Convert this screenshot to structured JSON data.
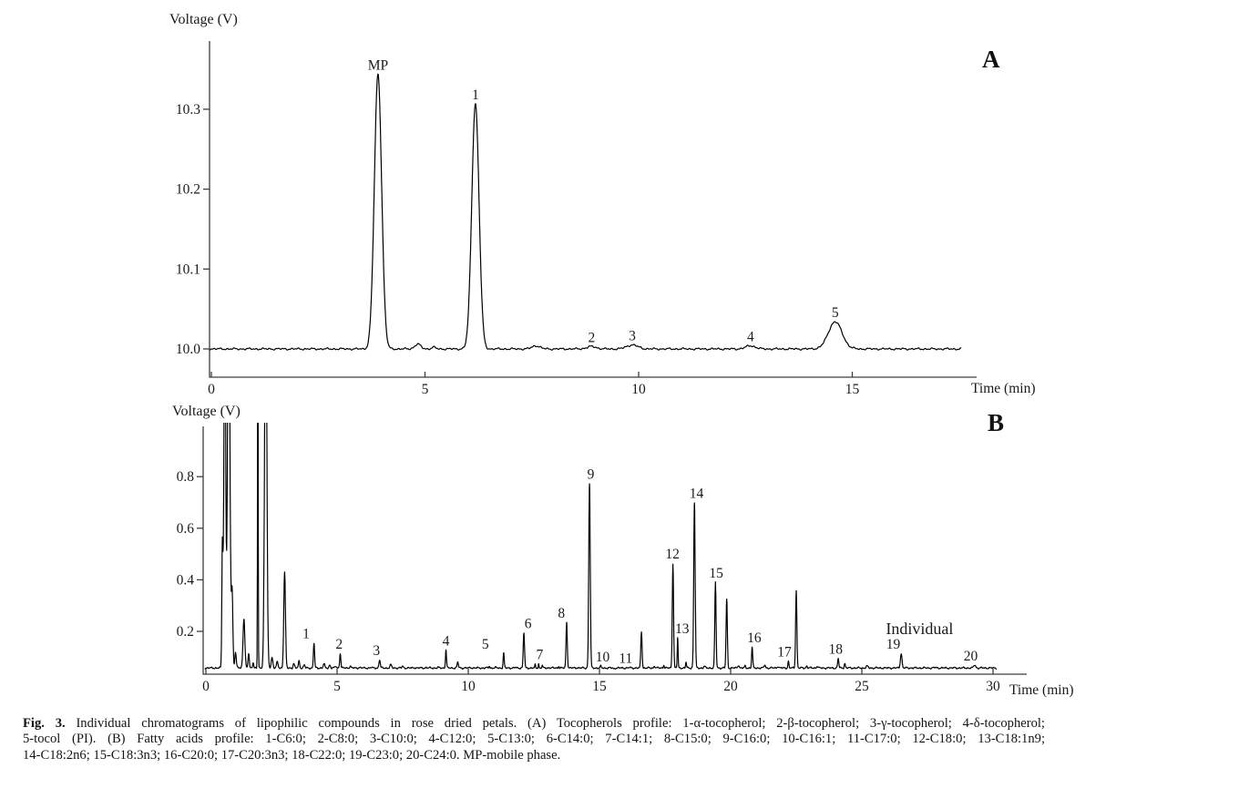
{
  "caption": {
    "fig_label": "Fig. 3.",
    "line1": " Individual chromatograms of lipophilic compounds in rose dried petals. (A) Tocopherols profile: 1-α-tocopherol; 2-β-tocopherol; 3-γ-tocopherol; 4-δ-tocopherol;",
    "line2": "5-tocol (PI). (B) Fatty acids profile: 1-C6:0; 2-C8:0; 3-C10:0; 4-C12:0; 5-C13:0; 6-C14:0; 7-C14:1; 8-C15:0; 9-C16:0; 10-C16:1; 11-C17:0; 12-C18:0; 13-C18:1n9;",
    "line3": "14-C18:2n6; 15-C18:3n3; 16-C20:0; 17-C20:3n3; 18-C22:0; 19-C23:0; 20-C24:0. MP-mobile phase."
  },
  "colors": {
    "trace": "#000000",
    "axis": "#3d3d3d",
    "text": "#1a1a1a"
  },
  "chart_data": [
    {
      "id": "A",
      "type": "line",
      "kind": "chromatogram",
      "panel_label": "A",
      "ylabel": "Voltage (V)",
      "xlabel": "Time (min)",
      "xlim": [
        0,
        17.9
      ],
      "ylim": [
        9.965,
        10.385
      ],
      "xticks": [
        "0",
        "5",
        "10",
        "15"
      ],
      "yticks": [
        "10.0",
        "10.1",
        "10.2",
        "10.3"
      ],
      "ytick_values": [
        10.0,
        10.1,
        10.2,
        10.3
      ],
      "xtick_values": [
        0,
        5,
        10,
        15
      ],
      "baseline": 10.0,
      "noise": 0.0012,
      "trace_end": 17.55,
      "peaks": [
        {
          "t": 3.9,
          "v": 10.344,
          "w": 0.085,
          "label": "MP"
        },
        {
          "t": 4.83,
          "v": 10.006,
          "w": 0.07
        },
        {
          "t": 5.2,
          "v": 10.002,
          "w": 0.05
        },
        {
          "t": 6.18,
          "v": 10.307,
          "w": 0.085,
          "label": "1"
        },
        {
          "t": 7.6,
          "v": 10.004,
          "w": 0.09
        },
        {
          "t": 8.9,
          "v": 10.003,
          "w": 0.11,
          "label": "2"
        },
        {
          "t": 9.85,
          "v": 10.005,
          "w": 0.13,
          "label": "3"
        },
        {
          "t": 12.62,
          "v": 10.004,
          "w": 0.11,
          "label": "4"
        },
        {
          "t": 14.6,
          "v": 10.034,
          "w": 0.16,
          "label": "5"
        }
      ],
      "annotations": []
    },
    {
      "id": "B",
      "type": "line",
      "kind": "chromatogram",
      "panel_label": "B",
      "ylabel": "Voltage (V)",
      "xlabel": "Time (min)",
      "xlim": [
        0,
        31.3
      ],
      "ylim": [
        0.034,
        0.995
      ],
      "xticks": [
        "0",
        "5",
        "10",
        "15",
        "20",
        "25",
        "30"
      ],
      "yticks": [
        "0.2",
        "0.4",
        "0.6",
        "0.8"
      ],
      "ytick_values": [
        0.2,
        0.4,
        0.6,
        0.8
      ],
      "xtick_values": [
        0,
        5,
        10,
        15,
        20,
        25,
        30
      ],
      "baseline": 0.058,
      "noise": 0.0035,
      "trace_end": 30.15,
      "peaks": [
        {
          "t": 0.63,
          "v": 0.54,
          "w": 0.022
        },
        {
          "t": 0.72,
          "v": 1.6,
          "w": 0.032
        },
        {
          "t": 0.87,
          "v": 1.6,
          "w": 0.045
        },
        {
          "t": 1.0,
          "v": 0.35,
          "w": 0.028
        },
        {
          "t": 1.13,
          "v": 0.12,
          "w": 0.028
        },
        {
          "t": 1.45,
          "v": 0.25,
          "w": 0.035
        },
        {
          "t": 1.63,
          "v": 0.115,
          "w": 0.022
        },
        {
          "t": 1.8,
          "v": 0.08,
          "w": 0.022
        },
        {
          "t": 1.98,
          "v": 1.6,
          "w": 0.012
        },
        {
          "t": 2.28,
          "v": 1.6,
          "w": 0.042
        },
        {
          "t": 2.52,
          "v": 0.1,
          "w": 0.03
        },
        {
          "t": 2.72,
          "v": 0.08,
          "w": 0.03
        },
        {
          "t": 3.0,
          "v": 0.43,
          "w": 0.032
        },
        {
          "t": 3.35,
          "v": 0.075,
          "w": 0.025
        },
        {
          "t": 3.55,
          "v": 0.085,
          "w": 0.025
        },
        {
          "t": 3.75,
          "v": 0.07,
          "w": 0.025
        },
        {
          "t": 4.12,
          "v": 0.155,
          "w": 0.022,
          "label": "1",
          "lt": 3.82
        },
        {
          "t": 4.5,
          "v": 0.075,
          "w": 0.025
        },
        {
          "t": 4.72,
          "v": 0.07,
          "w": 0.025
        },
        {
          "t": 4.95,
          "v": 0.065,
          "w": 0.025
        },
        {
          "t": 5.12,
          "v": 0.115,
          "w": 0.022,
          "label": "2",
          "lt": 5.08
        },
        {
          "t": 5.5,
          "v": 0.065,
          "w": 0.025
        },
        {
          "t": 5.85,
          "v": 0.06,
          "w": 0.025
        },
        {
          "t": 6.3,
          "v": 0.06,
          "w": 0.025
        },
        {
          "t": 6.62,
          "v": 0.09,
          "w": 0.025,
          "label": "3",
          "lt": 6.5
        },
        {
          "t": 7.05,
          "v": 0.07,
          "w": 0.03
        },
        {
          "t": 7.5,
          "v": 0.065,
          "w": 0.025
        },
        {
          "t": 7.95,
          "v": 0.06,
          "w": 0.025
        },
        {
          "t": 8.4,
          "v": 0.06,
          "w": 0.025
        },
        {
          "t": 8.85,
          "v": 0.06,
          "w": 0.025
        },
        {
          "t": 9.15,
          "v": 0.128,
          "w": 0.02,
          "label": "4",
          "lt": 9.15
        },
        {
          "t": 9.6,
          "v": 0.08,
          "w": 0.025
        },
        {
          "t": 10.1,
          "v": 0.06,
          "w": 0.025
        },
        {
          "t": 10.8,
          "v": 0.065,
          "w": 0.02
        },
        {
          "t": 11.05,
          "v": 0.06,
          "w": 0.018
        },
        {
          "t": 11.35,
          "v": 0.115,
          "w": 0.02,
          "label": "5",
          "lt": 10.65
        },
        {
          "t": 11.8,
          "v": 0.06,
          "w": 0.025
        },
        {
          "t": 12.12,
          "v": 0.195,
          "w": 0.024,
          "label": "6",
          "lt": 12.28
        },
        {
          "t": 12.55,
          "v": 0.07,
          "w": 0.013
        },
        {
          "t": 12.68,
          "v": 0.075,
          "w": 0.013,
          "label": "7",
          "lt": 12.72
        },
        {
          "t": 12.82,
          "v": 0.07,
          "w": 0.013
        },
        {
          "t": 13.1,
          "v": 0.06,
          "w": 0.022
        },
        {
          "t": 13.45,
          "v": 0.065,
          "w": 0.018
        },
        {
          "t": 13.75,
          "v": 0.235,
          "w": 0.024,
          "label": "8",
          "lt": 13.55
        },
        {
          "t": 14.15,
          "v": 0.06,
          "w": 0.022
        },
        {
          "t": 14.62,
          "v": 0.775,
          "w": 0.028,
          "label": "9",
          "lt": 14.67
        },
        {
          "t": 15.05,
          "v": 0.065,
          "w": 0.02,
          "label": "10",
          "lt": 15.12
        },
        {
          "t": 15.55,
          "v": 0.055,
          "w": 0.025
        },
        {
          "t": 16.15,
          "v": 0.06,
          "w": 0.02,
          "label": "11",
          "lt": 16.0
        },
        {
          "t": 16.6,
          "v": 0.2,
          "w": 0.024
        },
        {
          "t": 17.1,
          "v": 0.065,
          "w": 0.025
        },
        {
          "t": 17.45,
          "v": 0.07,
          "w": 0.018
        },
        {
          "t": 17.8,
          "v": 0.465,
          "w": 0.024,
          "label": "12",
          "lt": 17.78
        },
        {
          "t": 17.98,
          "v": 0.175,
          "w": 0.016,
          "label": "13",
          "lt": 18.15
        },
        {
          "t": 18.3,
          "v": 0.08,
          "w": 0.018
        },
        {
          "t": 18.62,
          "v": 0.7,
          "w": 0.027,
          "label": "14",
          "lt": 18.7
        },
        {
          "t": 19.0,
          "v": 0.065,
          "w": 0.025
        },
        {
          "t": 19.42,
          "v": 0.39,
          "w": 0.024,
          "label": "15",
          "lt": 19.45
        },
        {
          "t": 19.85,
          "v": 0.325,
          "w": 0.024
        },
        {
          "t": 20.3,
          "v": 0.07,
          "w": 0.025
        },
        {
          "t": 20.55,
          "v": 0.065,
          "w": 0.02
        },
        {
          "t": 20.82,
          "v": 0.14,
          "w": 0.02,
          "label": "16",
          "lt": 20.9
        },
        {
          "t": 21.3,
          "v": 0.07,
          "w": 0.025
        },
        {
          "t": 21.8,
          "v": 0.065,
          "w": 0.025
        },
        {
          "t": 22.2,
          "v": 0.085,
          "w": 0.018,
          "label": "17",
          "lt": 22.05
        },
        {
          "t": 22.5,
          "v": 0.36,
          "w": 0.024
        },
        {
          "t": 22.9,
          "v": 0.065,
          "w": 0.025
        },
        {
          "t": 23.3,
          "v": 0.065,
          "w": 0.025
        },
        {
          "t": 24.1,
          "v": 0.095,
          "w": 0.022,
          "label": "18",
          "lt": 24.0
        },
        {
          "t": 24.35,
          "v": 0.075,
          "w": 0.022
        },
        {
          "t": 25.2,
          "v": 0.065,
          "w": 0.035
        },
        {
          "t": 26.5,
          "v": 0.115,
          "w": 0.03,
          "label": "19",
          "lt": 26.2
        },
        {
          "t": 27.8,
          "v": 0.06,
          "w": 0.035
        },
        {
          "t": 29.3,
          "v": 0.07,
          "w": 0.035,
          "label": "20",
          "lt": 29.15
        }
      ],
      "annotations": [
        {
          "text": "Individual",
          "t": 27.2,
          "v": 0.19,
          "size": 18
        }
      ]
    }
  ]
}
